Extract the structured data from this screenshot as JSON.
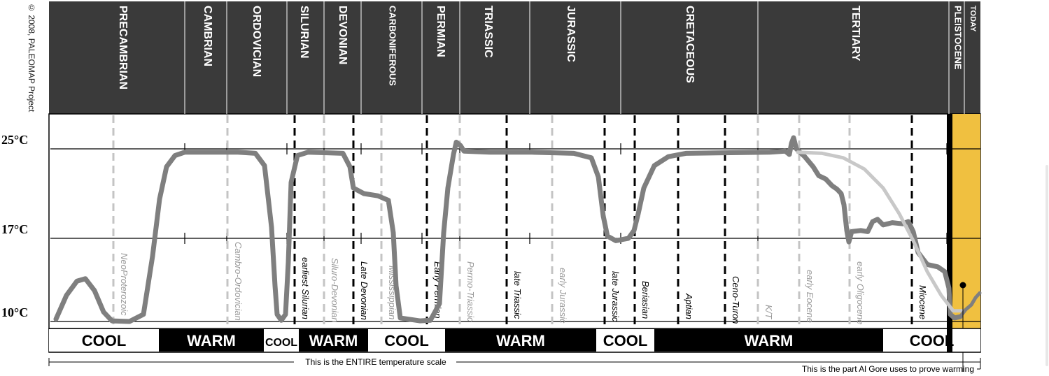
{
  "copyright": "© 2008, PALEOMAP Project",
  "chart_data": {
    "type": "line",
    "y_ticks": [
      {
        "value": 25,
        "label": "25°C"
      },
      {
        "value": 17,
        "label": "17°C"
      },
      {
        "value": 10,
        "label": "10°C"
      }
    ],
    "ylim": [
      10,
      25
    ],
    "periods": [
      "PRECAMBRIAN",
      "CAMBRIAN",
      "ORDOVICIAN",
      "SILURIAN",
      "DEVONIAN",
      "CARBONIFEROUS",
      "PERMIAN",
      "TRIASSIC",
      "JURASSIC",
      "CRETACEOUS",
      "TERTIARY",
      "PLEISTOCENE",
      "TODAY"
    ],
    "events": [
      "NeoProterozoic",
      "Cambro-Ordovician",
      "earliest Silurian",
      "Siluro-Devonian",
      "Late Devonian",
      "Mississippian",
      "Early Permian",
      "Permo-Triassic",
      "late Triassic",
      "early Jurassic",
      "late Jurassic",
      "Beriasian",
      "Aptian",
      "Ceno-Turon",
      "K/T",
      "early Eocene",
      "early Oligocene",
      "Miocene"
    ],
    "climate_bands": [
      {
        "label": "COOL",
        "state": "cool"
      },
      {
        "label": "WARM",
        "state": "warm"
      },
      {
        "label": "COOL",
        "state": "cool"
      },
      {
        "label": "WARM",
        "state": "warm"
      },
      {
        "label": "COOL",
        "state": "cool"
      },
      {
        "label": "WARM",
        "state": "warm"
      },
      {
        "label": "COOL",
        "state": "cool"
      },
      {
        "label": "WARM",
        "state": "warm"
      },
      {
        "label": "COOL",
        "state": "cool"
      }
    ],
    "annotations": {
      "entire_scale": "This is the ENTIRE temperature scale",
      "gore_part": "This is the part Al Gore uses to prove warming"
    },
    "colors": {
      "header": "#3a3a3a",
      "temperature_line": "#7f7f7f",
      "recent_line": "#c8c8c8",
      "highlight": "#f0c040",
      "warm_band": "#000000",
      "cool_band": "#ffffff"
    }
  }
}
